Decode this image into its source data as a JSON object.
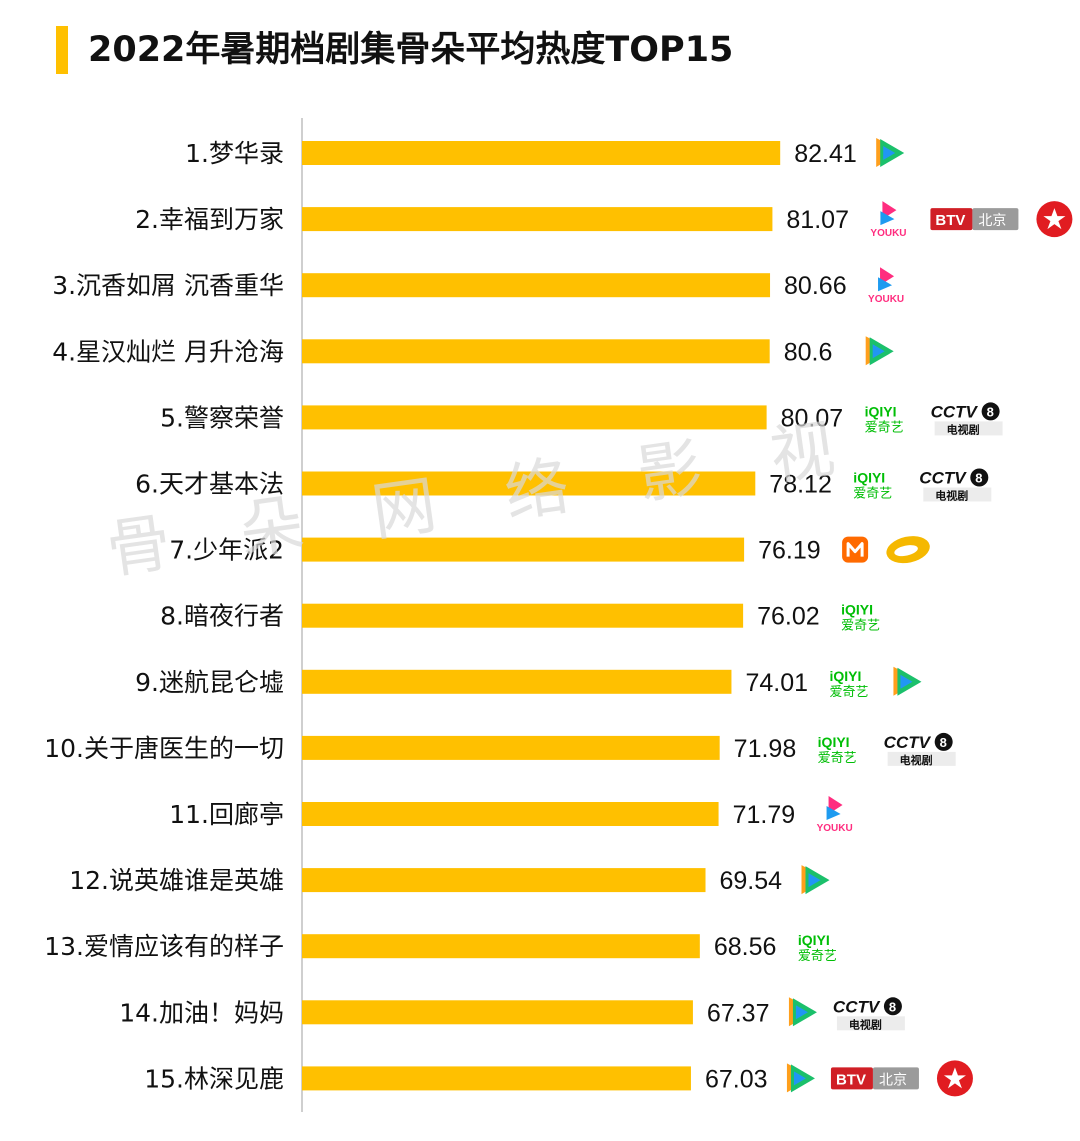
{
  "title": "2022年暑期档剧集骨朵平均热度TOP15",
  "watermark": "骨朵网络影视",
  "colors": {
    "bar": "#FFC000",
    "title_accent": "#FFC000",
    "tencent_green": "#1BC06B",
    "tencent_blue": "#2196F3",
    "tencent_orange": "#FF9F1C",
    "youku_pink": "#FF2D7F",
    "youku_blue": "#1E9BF0",
    "iqiyi_green": "#00BE06",
    "btv_red": "#D01F26",
    "btv_gray": "#9B9B9B",
    "dragon_red": "#E11C21",
    "cctv_black": "#111111",
    "mango_orange": "#FF6A00",
    "hunan_yellow": "#F5B800"
  },
  "chart_data": {
    "type": "bar",
    "orientation": "horizontal",
    "title": "2022年暑期档剧集骨朵平均热度TOP15",
    "categories": [
      "1.梦华录",
      "2.幸福到万家",
      "3.沉香如屑 沉香重华",
      "4.星汉灿烂 月升沧海",
      "5.警察荣誉",
      "6.天才基本法",
      "7.少年派2",
      "8.暗夜行者",
      "9.迷航昆仑墟",
      "10.关于唐医生的一切",
      "11.回廊亭",
      "12.说英雄谁是英雄",
      "13.爱情应该有的样子",
      "14.加油！妈妈",
      "15.林深见鹿"
    ],
    "values": [
      82.41,
      81.07,
      80.66,
      80.6,
      80.07,
      78.12,
      76.19,
      76.02,
      74.01,
      71.98,
      71.79,
      69.54,
      68.56,
      67.37,
      67.03
    ],
    "value_labels": [
      "82.41",
      "81.07",
      "80.66",
      "80.6",
      "80.07",
      "78.12",
      "76.19",
      "76.02",
      "74.01",
      "71.98",
      "71.79",
      "69.54",
      "68.56",
      "67.37",
      "67.03"
    ],
    "platforms": [
      [
        "tencent"
      ],
      [
        "youku",
        "btv",
        "dragon"
      ],
      [
        "youku"
      ],
      [
        "tencent"
      ],
      [
        "iqiyi",
        "cctv8"
      ],
      [
        "iqiyi",
        "cctv8"
      ],
      [
        "mango",
        "hunan"
      ],
      [
        "iqiyi"
      ],
      [
        "iqiyi",
        "tencent"
      ],
      [
        "iqiyi",
        "cctv8"
      ],
      [
        "youku"
      ],
      [
        "tencent"
      ],
      [
        "iqiyi"
      ],
      [
        "tencent",
        "cctv8"
      ],
      [
        "tencent",
        "btv",
        "dragon"
      ]
    ],
    "xlim": [
      0,
      84.1
    ],
    "grid": false,
    "legend": "none"
  },
  "logo_text": {
    "youku": "YOUKU",
    "iqiyi_top": "iQIYI",
    "iqiyi_bottom": "爱奇艺",
    "btv_left": "BTV",
    "btv_right": "北京",
    "cctv_main": "CCTV",
    "cctv_num": "8",
    "cctv_sub": "电视剧"
  }
}
